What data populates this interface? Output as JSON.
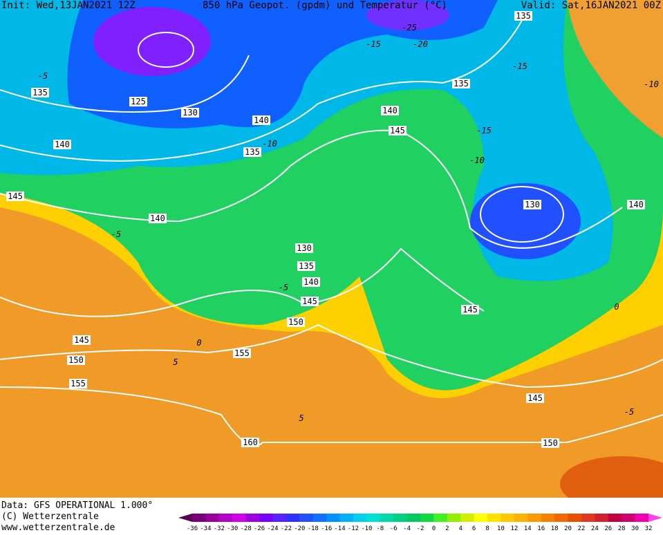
{
  "header": {
    "init": "Init: Wed,13JAN2021 12Z",
    "title": "850 hPa Geopot. (gpdm) und Temperatur (°C)",
    "valid": "Valid: Sat,16JAN2021 00Z"
  },
  "footer": {
    "data": "Data: GFS OPERATIONAL 1.000°",
    "copyright": "(C) Wetterzentrale",
    "url": "www.wetterzentrale.de"
  },
  "contour_labels": [
    135,
    135,
    125,
    130,
    140,
    140,
    145,
    135,
    140,
    135,
    145,
    140,
    130,
    140,
    130,
    135,
    140,
    145,
    150,
    145,
    145,
    150,
    155,
    155,
    145,
    160,
    150
  ],
  "isotherm_labels": [
    -15,
    -20,
    -25,
    -15,
    -10,
    -5,
    -15,
    -10,
    -5,
    0,
    5,
    -10,
    -5,
    5,
    0,
    -5
  ],
  "colorbar": {
    "labels": [
      -36,
      -34,
      -32,
      -30,
      -28,
      -26,
      -24,
      -22,
      -20,
      -18,
      -16,
      -14,
      -12,
      -10,
      -8,
      -6,
      -4,
      -2,
      0,
      2,
      4,
      6,
      8,
      10,
      12,
      14,
      16,
      18,
      20,
      22,
      24,
      26,
      28,
      30,
      32
    ],
    "colors": [
      "#5a0050",
      "#780078",
      "#9a0099",
      "#b400c8",
      "#d000e8",
      "#a000e0",
      "#7800ff",
      "#5a20ff",
      "#3030ff",
      "#2050ff",
      "#1070ff",
      "#0090ff",
      "#00b0ff",
      "#00d0f0",
      "#00e0d0",
      "#00d8a8",
      "#00d080",
      "#00c860",
      "#10d840",
      "#40f020",
      "#90f000",
      "#d0f000",
      "#ffff00",
      "#ffe000",
      "#ffc800",
      "#ffb000",
      "#ff9800",
      "#f88000",
      "#f06800",
      "#e85000",
      "#e03820",
      "#d02030",
      "#c00040",
      "#d00070",
      "#f000b0",
      "#ff40f0"
    ]
  }
}
